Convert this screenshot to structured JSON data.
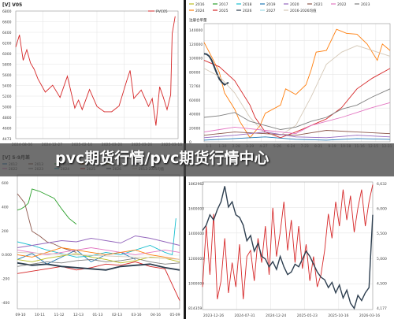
{
  "banner": "pvc期货行情/pvc期货行情中心",
  "chart_data": [
    {
      "type": "line",
      "title": "[V] V05",
      "legend": [
        "PVC05"
      ],
      "colors": [
        "#d62728"
      ],
      "ylim": [
        4473,
        6880
      ],
      "y_ticks": [
        "6800",
        "6600",
        "6400",
        "6200",
        "6000",
        "5800",
        "5600",
        "5400",
        "5200",
        "5000",
        "4800",
        "4600",
        "4473"
      ],
      "x_ticks": [
        "2024-08-06",
        "2024-12-27",
        "2025-02-10",
        "2025-03-20",
        "2025-03-26",
        "2025-03-16"
      ],
      "series": [
        {
          "name": "PVC05",
          "x": [
            0,
            5,
            10,
            15,
            20,
            25,
            30,
            40,
            50,
            60,
            70,
            80,
            85,
            90,
            100,
            110,
            120,
            130,
            140,
            150,
            155,
            160,
            170,
            180,
            185,
            190,
            195,
            200,
            205,
            210,
            212,
            216
          ],
          "values": [
            6200,
            6430,
            5950,
            6150,
            5900,
            5780,
            5600,
            5350,
            5480,
            5250,
            5650,
            5050,
            5200,
            5020,
            5400,
            5080,
            4980,
            4980,
            5090,
            5550,
            5760,
            5230,
            5390,
            5080,
            5230,
            4720,
            5450,
            5250,
            5020,
            5300,
            6450,
            6780
          ]
        }
      ]
    },
    {
      "type": "line",
      "title": "注册仓单量",
      "legend": [
        "2016",
        "2017",
        "2018",
        "2019",
        "2020",
        "2021",
        "2022",
        "2023",
        "2024",
        "2025",
        "2026",
        "2027",
        "2016-2026均值"
      ],
      "colors": [
        "#bcbd22",
        "#2ca02c",
        "#17becf",
        "#1f77b4",
        "#9467bd",
        "#8c564b",
        "#e377c2",
        "#7f7f7f",
        "#ff7f0e",
        "#d62728",
        "#2e3f50",
        "#9edae5",
        "#d5c9b8"
      ],
      "y_ticks": [
        "140000",
        "120000",
        "100000",
        "80000",
        "72760",
        "60000",
        "40000",
        "20000",
        "0"
      ],
      "x_ticks": [
        "1-1",
        "1-30",
        "2-28",
        "3-29",
        "4-27",
        "5-26",
        "6-24",
        "7-23",
        "8-21",
        "9-19",
        "10-18",
        "11-16",
        "12-15",
        "12-31"
      ],
      "ylim": [
        0,
        145000
      ],
      "series": [
        {
          "name": "2024",
          "x": [
            0,
            10,
            20,
            30,
            40,
            60,
            70,
            90,
            110,
            120,
            150,
            160,
            180,
            200,
            210,
            220,
            240,
            260,
            280,
            300,
            320,
            340,
            350,
            365
          ],
          "values": [
            122000,
            110000,
            98000,
            85000,
            60000,
            40000,
            25000,
            5000,
            20000,
            35000,
            45000,
            65000,
            58000,
            70000,
            88000,
            110000,
            112000,
            138000,
            133000,
            132000,
            120000,
            100000,
            120000,
            112000
          ]
        },
        {
          "name": "2025",
          "x": [
            0,
            15,
            30,
            60,
            90,
            100,
            120,
            150,
            180,
            210,
            240,
            270,
            300,
            330,
            365
          ],
          "values": [
            100000,
            96000,
            92000,
            75000,
            45000,
            30000,
            12000,
            5000,
            12000,
            20000,
            28000,
            42000,
            65000,
            78000,
            90000
          ]
        },
        {
          "name": "2026",
          "x": [
            0,
            5,
            10,
            15,
            20,
            25,
            30,
            35,
            40,
            48
          ],
          "values": [
            108000,
            107500,
            105000,
            100000,
            92000,
            84000,
            77000,
            73000,
            70000,
            72760
          ]
        },
        {
          "name": "2016-2026均值",
          "x": [
            0,
            30,
            60,
            90,
            120,
            150,
            180,
            210,
            240,
            270,
            300,
            330,
            365
          ],
          "values": [
            90000,
            80000,
            60000,
            30000,
            10000,
            8000,
            20000,
            55000,
            95000,
            110000,
            118000,
            112000,
            105000
          ]
        },
        {
          "name": "2023",
          "x": [
            0,
            30,
            60,
            90,
            120,
            150,
            180,
            210,
            240,
            270,
            300,
            330,
            365
          ],
          "values": [
            30000,
            32000,
            36000,
            25000,
            20000,
            15000,
            18000,
            25000,
            30000,
            40000,
            45000,
            55000,
            65000
          ]
        },
        {
          "name": "2022",
          "x": [
            0,
            30,
            60,
            90,
            120,
            150,
            180,
            210,
            240,
            270,
            300,
            330,
            365
          ],
          "values": [
            12000,
            15000,
            18000,
            16000,
            14000,
            12000,
            10000,
            20000,
            25000,
            30000,
            36000,
            42000,
            48000
          ]
        },
        {
          "name": "2021",
          "x": [
            0,
            60,
            120,
            180,
            240,
            300,
            365
          ],
          "values": [
            8000,
            12000,
            10000,
            8000,
            14000,
            12000,
            10000
          ]
        },
        {
          "name": "2020",
          "x": [
            0,
            60,
            120,
            180,
            240,
            300,
            365
          ],
          "values": [
            5000,
            8000,
            12000,
            6000,
            5000,
            8000,
            6000
          ]
        },
        {
          "name": "2019",
          "x": [
            0,
            60,
            120,
            180,
            240,
            300,
            365
          ],
          "values": [
            2000,
            4000,
            6000,
            3000,
            2000,
            4000,
            3000
          ]
        }
      ]
    },
    {
      "type": "line",
      "title": "[V] 5-9月差",
      "legend": [
        "2012",
        "2013",
        "2016",
        "2017",
        "2020",
        "2021",
        "2022",
        "2023",
        "2024",
        "2025",
        "2026",
        "2012-2025均值"
      ],
      "colors": [
        "#1f77b4",
        "#8c564b",
        "#2ca02c",
        "#ff7f0e",
        "#bcbd22",
        "#9467bd",
        "#e377c2",
        "#7f7f7f",
        "#17becf",
        "#d62728",
        "#2e3f50",
        "#d5c9b8"
      ],
      "ylim": [
        -420,
        720
      ],
      "y_ticks": [
        "600",
        "400",
        "200",
        "0.000",
        "-200",
        "-400"
      ],
      "x_ticks": [
        "09-10",
        "10-11",
        "11-12",
        "12-13",
        "01-13",
        "02-13",
        "03-16",
        "04-16",
        "05-09"
      ],
      "series": [
        {
          "name": "2016",
          "x": [
            0,
            5,
            10,
            15,
            20,
            30,
            40,
            50,
            60,
            70,
            80
          ],
          "values": [
            420,
            430,
            450,
            480,
            600,
            580,
            550,
            520,
            430,
            350,
            300
          ]
        },
        {
          "name": "2013",
          "x": [
            0,
            10,
            20,
            30,
            40,
            50,
            60,
            70,
            80
          ],
          "values": [
            560,
            480,
            240,
            200,
            150,
            130,
            100,
            80,
            60
          ]
        },
        {
          "name": "2012",
          "x": [
            0,
            20,
            40,
            60,
            80,
            100,
            120,
            140,
            160
          ],
          "values": [
            0,
            50,
            -40,
            20,
            80,
            -20,
            40,
            60,
            0
          ]
        },
        {
          "name": "2024",
          "x": [
            0,
            20,
            40,
            60,
            80,
            100,
            120,
            140,
            160,
            180,
            200,
            210,
            215
          ],
          "values": [
            150,
            120,
            80,
            50,
            20,
            30,
            60,
            40,
            80,
            120,
            60,
            40,
            350
          ]
        },
        {
          "name": "2025",
          "x": [
            0,
            20,
            40,
            60,
            80,
            100,
            120,
            140,
            160,
            180,
            200,
            220
          ],
          "values": [
            -120,
            -100,
            -80,
            -60,
            -90,
            -70,
            -40,
            -50,
            -20,
            -60,
            -80,
            -350
          ]
        },
        {
          "name": "2026",
          "x": [
            0,
            20,
            40,
            60,
            80,
            100,
            120,
            140,
            160,
            180,
            200,
            220
          ],
          "values": [
            -30,
            -50,
            -40,
            -60,
            -70,
            -80,
            -90,
            -60,
            -50,
            -40,
            -70,
            -90
          ]
        },
        {
          "name": "2021",
          "x": [
            0,
            20,
            40,
            60,
            80,
            100,
            120,
            140,
            160,
            180,
            200,
            220
          ],
          "values": [
            100,
            120,
            140,
            160,
            150,
            180,
            160,
            140,
            200,
            180,
            150,
            120
          ]
        },
        {
          "name": "2022",
          "x": [
            0,
            20,
            40,
            60,
            80,
            100,
            120,
            140,
            160,
            180,
            200,
            220
          ],
          "values": [
            80,
            60,
            40,
            60,
            80,
            100,
            80,
            60,
            40,
            60,
            80,
            60
          ]
        },
        {
          "name": "2023",
          "x": [
            0,
            20,
            40,
            60,
            80,
            100,
            120,
            140,
            160,
            180,
            200,
            220
          ],
          "values": [
            -60,
            -40,
            -20,
            -30,
            -10,
            0,
            -20,
            -10,
            10,
            -20,
            -40,
            -30
          ]
        },
        {
          "name": "2017",
          "x": [
            0,
            20,
            40,
            60,
            80,
            100,
            120,
            140,
            160,
            180,
            200,
            220
          ],
          "values": [
            40,
            20,
            60,
            100,
            80,
            60,
            40,
            60,
            80,
            40,
            20,
            0
          ]
        },
        {
          "name": "2020",
          "x": [
            0,
            20,
            40,
            60,
            80,
            100,
            120,
            140,
            160,
            180,
            200,
            220
          ],
          "values": [
            0,
            -20,
            10,
            30,
            50,
            20,
            0,
            -30,
            -10,
            20,
            10,
            -20
          ]
        },
        {
          "name": "2012-2025均值",
          "x": [
            0,
            40,
            80,
            120,
            160,
            200,
            220
          ],
          "values": [
            60,
            50,
            40,
            30,
            20,
            10,
            0
          ]
        }
      ]
    },
    {
      "type": "line",
      "title": "",
      "colors": [
        "#d62728",
        "#2e3f50"
      ],
      "ylim_left": [
        814359,
        1862962
      ],
      "ylim_right": [
        4177,
        6632
      ],
      "y_ticks_left": [
        "1862962",
        "1600000",
        "1400000",
        "1200000",
        "1000000",
        "814359"
      ],
      "y_ticks_right": [
        "6,632",
        "6,000",
        "5,500",
        "5,000",
        "4,500",
        "4,177"
      ],
      "x_ticks": [
        "2023-12-26",
        "2024-07-31",
        "2024-12-24",
        "2025-05-23",
        "2025-10-16",
        "2026-03-16"
      ],
      "series": [
        {
          "name": "",
          "axis": "left",
          "x": [
            0,
            5,
            10,
            15,
            20,
            25,
            30,
            35,
            40,
            45,
            50,
            55,
            60,
            65,
            70,
            75,
            80,
            85,
            90,
            95,
            100,
            105,
            110,
            115,
            120,
            125,
            130,
            135,
            140,
            145,
            150,
            155,
            160,
            165,
            170,
            175,
            180,
            185,
            190,
            195,
            200,
            205,
            210,
            215,
            220,
            225,
            230
          ],
          "values": [
            1000000,
            1500000,
            1100000,
            1600000,
            900000,
            1050000,
            1400000,
            950000,
            1200000,
            1000000,
            1350000,
            900000,
            1250000,
            1300000,
            1050000,
            1400000,
            1200000,
            1500000,
            1100000,
            1650000,
            1250000,
            1450000,
            1700000,
            1300000,
            1550000,
            1200000,
            1500000,
            1150000,
            1350000,
            1050000,
            1250000,
            1000000,
            1100000,
            1300000,
            1600000,
            1400000,
            1700000,
            1500000,
            1800000,
            1550000,
            1750000,
            1450000,
            1650000,
            1800000,
            1500000,
            1700000,
            1840000
          ]
        },
        {
          "name": "",
          "axis": "right",
          "x": [
            0,
            5,
            10,
            15,
            20,
            25,
            30,
            35,
            40,
            45,
            50,
            55,
            60,
            65,
            70,
            75,
            80,
            85,
            90,
            95,
            100,
            105,
            110,
            115,
            120,
            125,
            130,
            135,
            140,
            145,
            150,
            155,
            160,
            165,
            170,
            175,
            180,
            185,
            190,
            195,
            200,
            205,
            210,
            215,
            220,
            225,
            230
          ],
          "values": [
            5700,
            5800,
            6000,
            5900,
            6100,
            6250,
            6550,
            6150,
            6250,
            6000,
            5950,
            5800,
            5500,
            5600,
            5300,
            5450,
            5200,
            5150,
            5000,
            5100,
            4950,
            5200,
            5000,
            4850,
            4900,
            5050,
            5000,
            5150,
            5300,
            5200,
            5050,
            4900,
            4800,
            4750,
            4600,
            4700,
            4500,
            4650,
            4400,
            4550,
            4300,
            4200,
            4450,
            4350,
            4500,
            4600,
            6000
          ]
        }
      ]
    }
  ]
}
